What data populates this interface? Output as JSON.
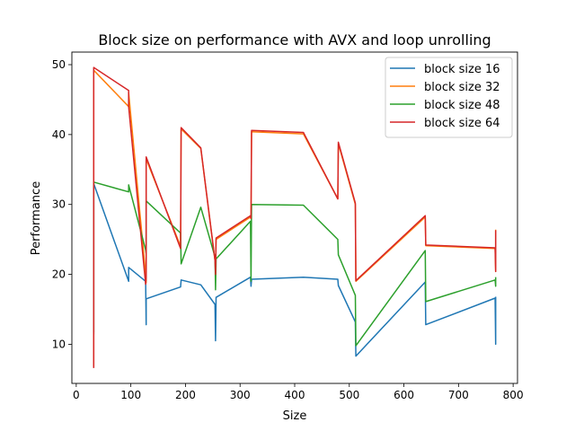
{
  "chart_data": {
    "type": "line",
    "title": "Block size on performance with AVX and loop unrolling",
    "xlabel": "Size",
    "ylabel": "Performance",
    "xlim": [
      -8,
      808
    ],
    "ylim": [
      4.4,
      51.8
    ],
    "xticks": [
      0,
      100,
      200,
      300,
      400,
      500,
      600,
      700,
      800
    ],
    "yticks": [
      10,
      20,
      30,
      40,
      50
    ],
    "grid": false,
    "legend_position": "upper right",
    "series": [
      {
        "name": "block size 16",
        "color": "#1f77b4",
        "x": [
          32,
          32,
          96,
          96,
          127,
          128,
          128,
          191,
          192,
          228,
          254,
          255,
          256,
          319,
          320,
          321,
          416,
          479,
          480,
          511,
          512,
          639,
          640,
          767,
          768,
          768
        ],
        "y": [
          11.5,
          33.0,
          19.0,
          21.0,
          19.0,
          12.8,
          16.5,
          18.2,
          19.2,
          18.5,
          15.7,
          10.5,
          16.7,
          19.6,
          18.3,
          19.3,
          19.6,
          19.3,
          18.4,
          13.2,
          8.3,
          18.9,
          12.8,
          16.6,
          10.0,
          16.7
        ]
      },
      {
        "name": "block size 32",
        "color": "#ff7f0e",
        "x": [
          32,
          32,
          96,
          96,
          127,
          128,
          128,
          191,
          192,
          228,
          254,
          255,
          256,
          319,
          320,
          321,
          416,
          479,
          480,
          511,
          512,
          639,
          640,
          767,
          768,
          768
        ],
        "y": [
          6.9,
          49.2,
          44.0,
          46.0,
          20.0,
          18.8,
          36.5,
          24.0,
          40.8,
          38.0,
          22.0,
          20.3,
          25.0,
          28.2,
          28.0,
          40.4,
          40.1,
          30.8,
          38.7,
          30.0,
          19.0,
          28.2,
          24.1,
          23.7,
          20.4,
          26.3
        ]
      },
      {
        "name": "block size 48",
        "color": "#2ca02c",
        "x": [
          32,
          32,
          96,
          96,
          127,
          128,
          128,
          191,
          192,
          228,
          254,
          255,
          256,
          319,
          320,
          321,
          416,
          479,
          480,
          511,
          512,
          639,
          640,
          767,
          768,
          768
        ],
        "y": [
          11.8,
          33.2,
          31.8,
          32.8,
          23.5,
          23.0,
          30.5,
          25.9,
          21.5,
          29.6,
          22.5,
          17.8,
          22.2,
          27.6,
          19.0,
          30.0,
          29.9,
          25.0,
          22.8,
          17.0,
          9.8,
          23.4,
          16.1,
          19.2,
          18.3,
          19.5
        ]
      },
      {
        "name": "block size 64",
        "color": "#d62728",
        "x": [
          32,
          32,
          96,
          96,
          127,
          128,
          128,
          191,
          192,
          228,
          254,
          255,
          256,
          319,
          320,
          321,
          416,
          479,
          480,
          511,
          512,
          639,
          640,
          767,
          768,
          768
        ],
        "y": [
          6.7,
          49.6,
          46.3,
          44.0,
          18.6,
          19.5,
          36.8,
          23.7,
          41.0,
          38.1,
          22.0,
          20.0,
          25.2,
          28.4,
          28.0,
          40.6,
          40.3,
          30.8,
          38.9,
          30.2,
          19.1,
          28.4,
          24.2,
          23.8,
          20.4,
          26.2
        ]
      }
    ]
  }
}
